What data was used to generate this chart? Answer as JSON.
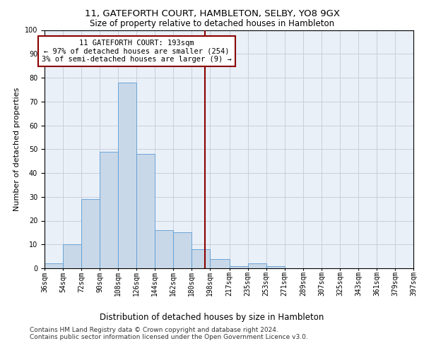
{
  "title1": "11, GATEFORTH COURT, HAMBLETON, SELBY, YO8 9GX",
  "title2": "Size of property relative to detached houses in Hambleton",
  "xlabel": "Distribution of detached houses by size in Hambleton",
  "ylabel": "Number of detached properties",
  "footnote1": "Contains HM Land Registry data © Crown copyright and database right 2024.",
  "footnote2": "Contains public sector information licensed under the Open Government Licence v3.0.",
  "annotation_line1": "11 GATEFORTH COURT: 193sqm",
  "annotation_line2": "← 97% of detached houses are smaller (254)",
  "annotation_line3": "3% of semi-detached houses are larger (9) →",
  "property_size": 193,
  "bin_edges": [
    36,
    54,
    72,
    90,
    108,
    126,
    144,
    162,
    180,
    198,
    217,
    235,
    253,
    271,
    289,
    307,
    325,
    343,
    361,
    379,
    397
  ],
  "bar_heights": [
    2,
    10,
    29,
    49,
    78,
    48,
    16,
    15,
    8,
    4,
    1,
    2,
    1,
    0,
    0,
    0,
    0,
    0,
    0,
    0
  ],
  "bar_color": "#c8d8e8",
  "bar_edgecolor": "#5b9bd5",
  "vline_color": "#8b0000",
  "vline_x": 193,
  "annotation_box_edgecolor": "#8b0000",
  "background_color": "#ffffff",
  "axes_facecolor": "#eaf0f8",
  "grid_color": "#c8d0dc",
  "ylim": [
    0,
    100
  ],
  "title1_fontsize": 9.5,
  "title2_fontsize": 8.5,
  "xlabel_fontsize": 8.5,
  "ylabel_fontsize": 8,
  "tick_fontsize": 7,
  "annotation_fontsize": 7.5,
  "footnote_fontsize": 6.5
}
